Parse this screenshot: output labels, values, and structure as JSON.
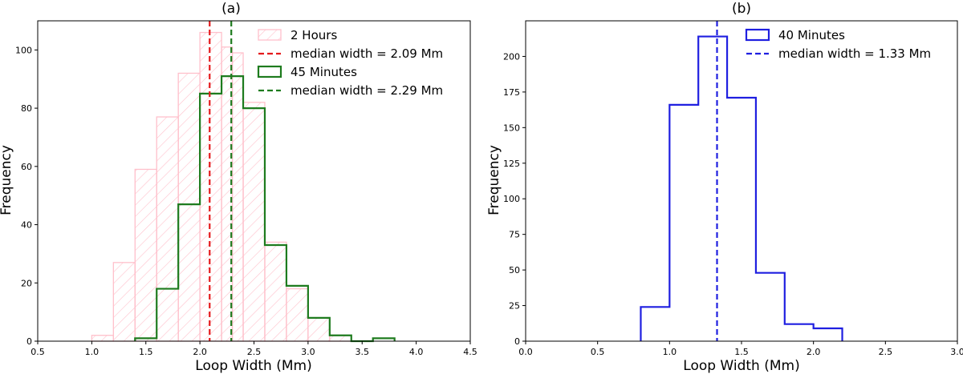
{
  "chart_data": [
    {
      "id": "a",
      "type": "histogram",
      "title": "(a)",
      "xlabel": "Loop Width (Mm)",
      "ylabel": "Frequency",
      "xlim": [
        0.5,
        4.5
      ],
      "ylim": [
        0,
        110
      ],
      "xticks": [
        0.5,
        1.0,
        1.5,
        2.0,
        2.5,
        3.0,
        3.5,
        4.0,
        4.5
      ],
      "xtick_labels": [
        "0.5",
        "1.0",
        "1.5",
        "2.0",
        "2.5",
        "3.0",
        "3.5",
        "4.0",
        "4.5"
      ],
      "yticks": [
        0,
        20,
        40,
        60,
        80,
        100
      ],
      "ytick_labels": [
        "0",
        "20",
        "40",
        "60",
        "80",
        "100"
      ],
      "grid": false,
      "legend_position": "top-right",
      "series": [
        {
          "name": "2 Hours",
          "style": "hatched",
          "color": "#FFC0CB",
          "bin_edges": [
            1.0,
            1.2,
            1.4,
            1.6,
            1.8,
            2.0,
            2.2,
            2.3,
            2.4,
            2.6,
            2.8,
            3.0,
            3.2,
            3.4
          ],
          "counts": [
            2,
            27,
            59,
            77,
            92,
            106,
            101,
            99,
            82,
            34,
            18,
            8,
            2
          ]
        },
        {
          "name": "45 Minutes",
          "style": "step",
          "color": "#1E7B1E",
          "bin_edges": [
            1.4,
            1.6,
            1.8,
            2.0,
            2.2,
            2.4,
            2.6,
            2.8,
            3.0,
            3.2,
            3.4,
            3.6,
            3.8
          ],
          "counts": [
            1,
            18,
            47,
            85,
            91,
            80,
            33,
            19,
            8,
            2,
            0,
            1
          ]
        }
      ],
      "vlines": [
        {
          "name": "median width = 2.09 Mm",
          "x": 2.09,
          "color": "#E41A1C"
        },
        {
          "name": "median width = 2.29 Mm",
          "x": 2.29,
          "color": "#1E7B1E"
        }
      ]
    },
    {
      "id": "b",
      "type": "histogram",
      "title": "(b)",
      "xlabel": "Loop Width (Mm)",
      "ylabel": "Frequency",
      "xlim": [
        0.0,
        3.0
      ],
      "ylim": [
        0,
        225
      ],
      "xticks": [
        0.0,
        0.5,
        1.0,
        1.5,
        2.0,
        2.5,
        3.0
      ],
      "xtick_labels": [
        "0.0",
        "0.5",
        "1.0",
        "1.5",
        "2.0",
        "2.5",
        "3.0"
      ],
      "yticks": [
        0,
        25,
        50,
        75,
        100,
        125,
        150,
        175,
        200
      ],
      "ytick_labels": [
        "0",
        "25",
        "50",
        "75",
        "100",
        "125",
        "150",
        "175",
        "200"
      ],
      "grid": false,
      "legend_position": "top-right",
      "series": [
        {
          "name": "40 Minutes",
          "style": "step",
          "color": "#1F1FE0",
          "bin_edges": [
            0.8,
            1.0,
            1.2,
            1.4,
            1.6,
            1.8,
            2.0,
            2.2
          ],
          "counts": [
            24,
            166,
            214,
            171,
            48,
            12,
            9
          ]
        }
      ],
      "vlines": [
        {
          "name": "median width = 1.33 Mm",
          "x": 1.33,
          "color": "#1F1FE0"
        }
      ]
    }
  ]
}
